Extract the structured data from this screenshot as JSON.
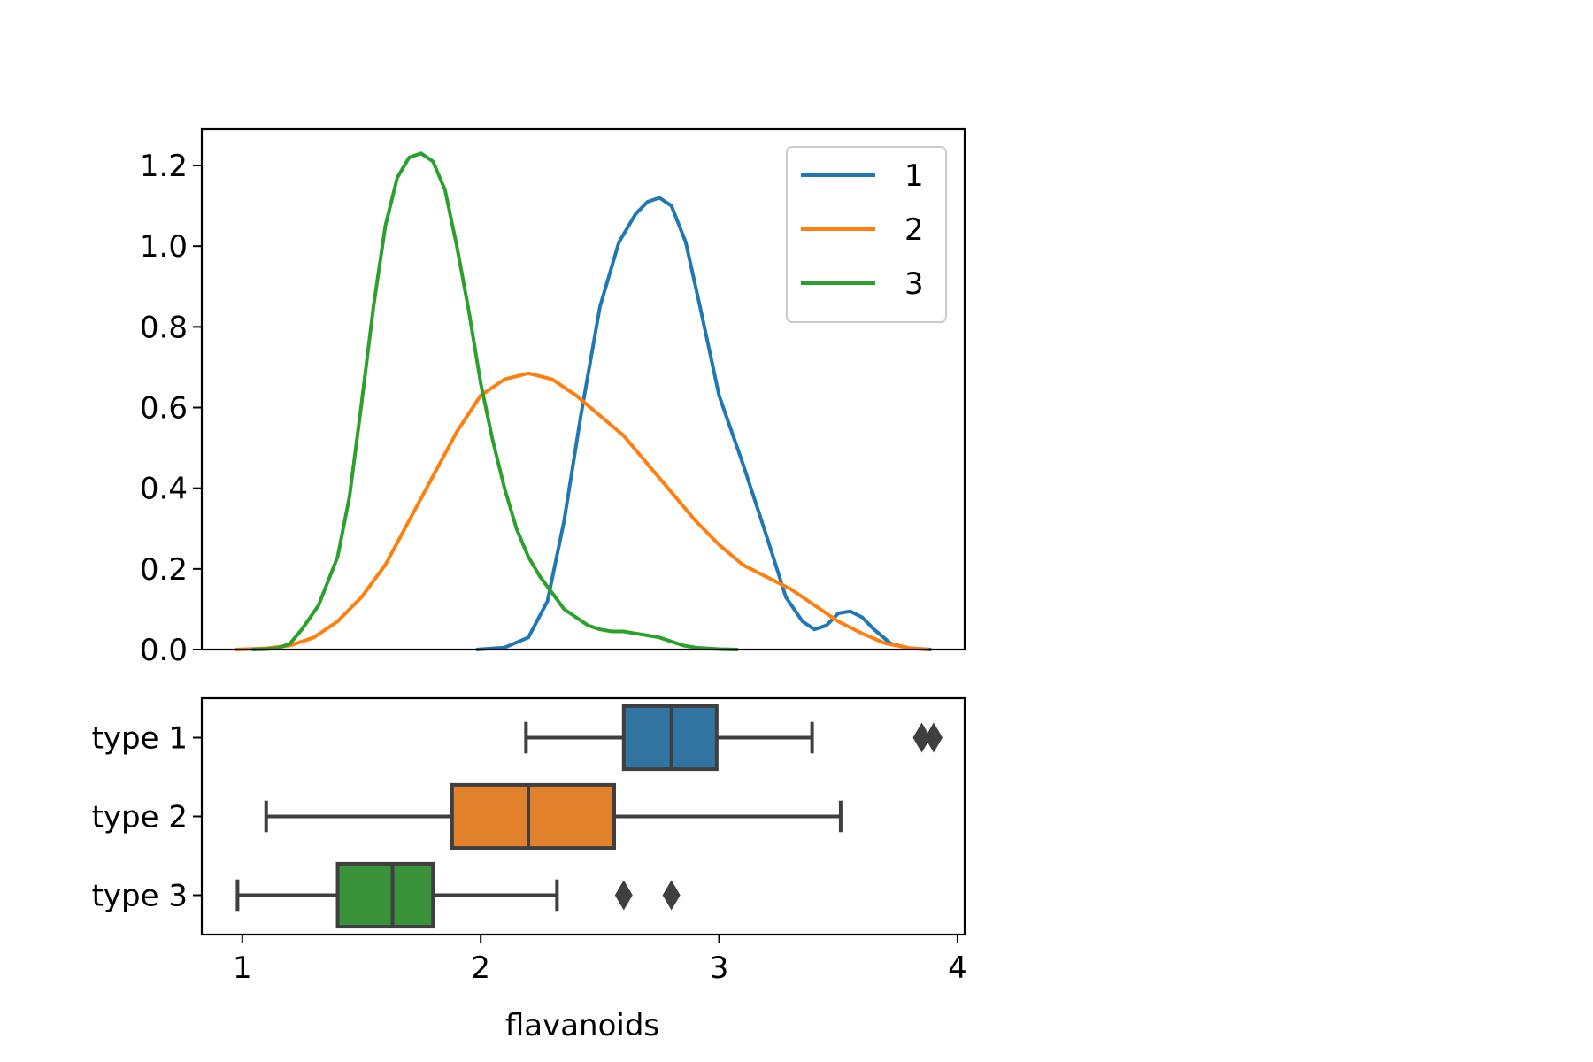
{
  "chart_data": [
    {
      "type": "line",
      "subtype": "kde-density",
      "xlim": [
        0.83,
        4.03
      ],
      "ylim": [
        0,
        1.29
      ],
      "yticks": [
        "0.0",
        "0.2",
        "0.4",
        "0.6",
        "0.8",
        "1.0",
        "1.2"
      ],
      "shares_x_axis_with": "boxplot",
      "legend": {
        "position": "top-right",
        "entries": [
          "1",
          "2",
          "3"
        ]
      },
      "series": [
        {
          "name": "1",
          "color": "#1f77b4",
          "points": [
            [
              1.98,
              0.0
            ],
            [
              2.1,
              0.005
            ],
            [
              2.2,
              0.03
            ],
            [
              2.28,
              0.12
            ],
            [
              2.35,
              0.32
            ],
            [
              2.42,
              0.58
            ],
            [
              2.5,
              0.85
            ],
            [
              2.58,
              1.01
            ],
            [
              2.65,
              1.08
            ],
            [
              2.7,
              1.11
            ],
            [
              2.75,
              1.12
            ],
            [
              2.8,
              1.1
            ],
            [
              2.86,
              1.01
            ],
            [
              2.92,
              0.85
            ],
            [
              3.0,
              0.63
            ],
            [
              3.1,
              0.46
            ],
            [
              3.2,
              0.28
            ],
            [
              3.28,
              0.13
            ],
            [
              3.35,
              0.07
            ],
            [
              3.4,
              0.05
            ],
            [
              3.45,
              0.06
            ],
            [
              3.5,
              0.09
            ],
            [
              3.55,
              0.095
            ],
            [
              3.6,
              0.08
            ],
            [
              3.65,
              0.05
            ],
            [
              3.72,
              0.015
            ],
            [
              3.8,
              0.003
            ],
            [
              3.89,
              0.0
            ]
          ]
        },
        {
          "name": "2",
          "color": "#ff7f0e",
          "points": [
            [
              0.97,
              0.0
            ],
            [
              1.1,
              0.003
            ],
            [
              1.2,
              0.01
            ],
            [
              1.3,
              0.03
            ],
            [
              1.4,
              0.07
            ],
            [
              1.5,
              0.13
            ],
            [
              1.6,
              0.21
            ],
            [
              1.7,
              0.32
            ],
            [
              1.8,
              0.43
            ],
            [
              1.9,
              0.54
            ],
            [
              2.0,
              0.63
            ],
            [
              2.1,
              0.67
            ],
            [
              2.2,
              0.685
            ],
            [
              2.3,
              0.67
            ],
            [
              2.4,
              0.63
            ],
            [
              2.5,
              0.58
            ],
            [
              2.6,
              0.53
            ],
            [
              2.7,
              0.46
            ],
            [
              2.8,
              0.39
            ],
            [
              2.9,
              0.32
            ],
            [
              3.0,
              0.26
            ],
            [
              3.1,
              0.21
            ],
            [
              3.2,
              0.18
            ],
            [
              3.3,
              0.15
            ],
            [
              3.4,
              0.11
            ],
            [
              3.5,
              0.07
            ],
            [
              3.6,
              0.04
            ],
            [
              3.7,
              0.015
            ],
            [
              3.8,
              0.004
            ],
            [
              3.88,
              0.0
            ]
          ]
        },
        {
          "name": "3",
          "color": "#2ca02c",
          "points": [
            [
              1.04,
              0.0
            ],
            [
              1.1,
              0.001
            ],
            [
              1.15,
              0.004
            ],
            [
              1.2,
              0.015
            ],
            [
              1.25,
              0.05
            ],
            [
              1.32,
              0.11
            ],
            [
              1.4,
              0.23
            ],
            [
              1.45,
              0.38
            ],
            [
              1.5,
              0.61
            ],
            [
              1.55,
              0.85
            ],
            [
              1.6,
              1.05
            ],
            [
              1.65,
              1.17
            ],
            [
              1.7,
              1.22
            ],
            [
              1.75,
              1.23
            ],
            [
              1.8,
              1.21
            ],
            [
              1.85,
              1.14
            ],
            [
              1.9,
              1.0
            ],
            [
              1.95,
              0.84
            ],
            [
              2.0,
              0.66
            ],
            [
              2.05,
              0.52
            ],
            [
              2.1,
              0.4
            ],
            [
              2.15,
              0.3
            ],
            [
              2.2,
              0.23
            ],
            [
              2.25,
              0.18
            ],
            [
              2.3,
              0.14
            ],
            [
              2.35,
              0.1
            ],
            [
              2.4,
              0.08
            ],
            [
              2.45,
              0.06
            ],
            [
              2.5,
              0.05
            ],
            [
              2.55,
              0.045
            ],
            [
              2.6,
              0.045
            ],
            [
              2.65,
              0.04
            ],
            [
              2.7,
              0.035
            ],
            [
              2.75,
              0.03
            ],
            [
              2.8,
              0.02
            ],
            [
              2.85,
              0.01
            ],
            [
              2.9,
              0.005
            ],
            [
              3.0,
              0.001
            ],
            [
              3.08,
              0.0
            ]
          ]
        }
      ]
    },
    {
      "type": "boxplot",
      "orientation": "horizontal",
      "xlim": [
        0.83,
        4.03
      ],
      "xticks": [
        "1",
        "2",
        "3",
        "4"
      ],
      "xlabel": "flavanoids",
      "categories": [
        "type 1",
        "type 2",
        "type 3"
      ],
      "boxes": [
        {
          "label": "type 1",
          "color": "#3274a1",
          "whisker_low": 2.19,
          "q1": 2.6,
          "median": 2.8,
          "q3": 2.99,
          "whisker_high": 3.39,
          "outliers": [
            3.85,
            3.9
          ]
        },
        {
          "label": "type 2",
          "color": "#e1812c",
          "whisker_low": 1.1,
          "q1": 1.88,
          "median": 2.2,
          "q3": 2.56,
          "whisker_high": 3.51,
          "outliers": []
        },
        {
          "label": "type 3",
          "color": "#3a923a",
          "whisker_low": 0.98,
          "q1": 1.4,
          "median": 1.63,
          "q3": 1.8,
          "whisker_high": 2.32,
          "outliers": [
            2.6,
            2.8
          ]
        }
      ]
    }
  ]
}
